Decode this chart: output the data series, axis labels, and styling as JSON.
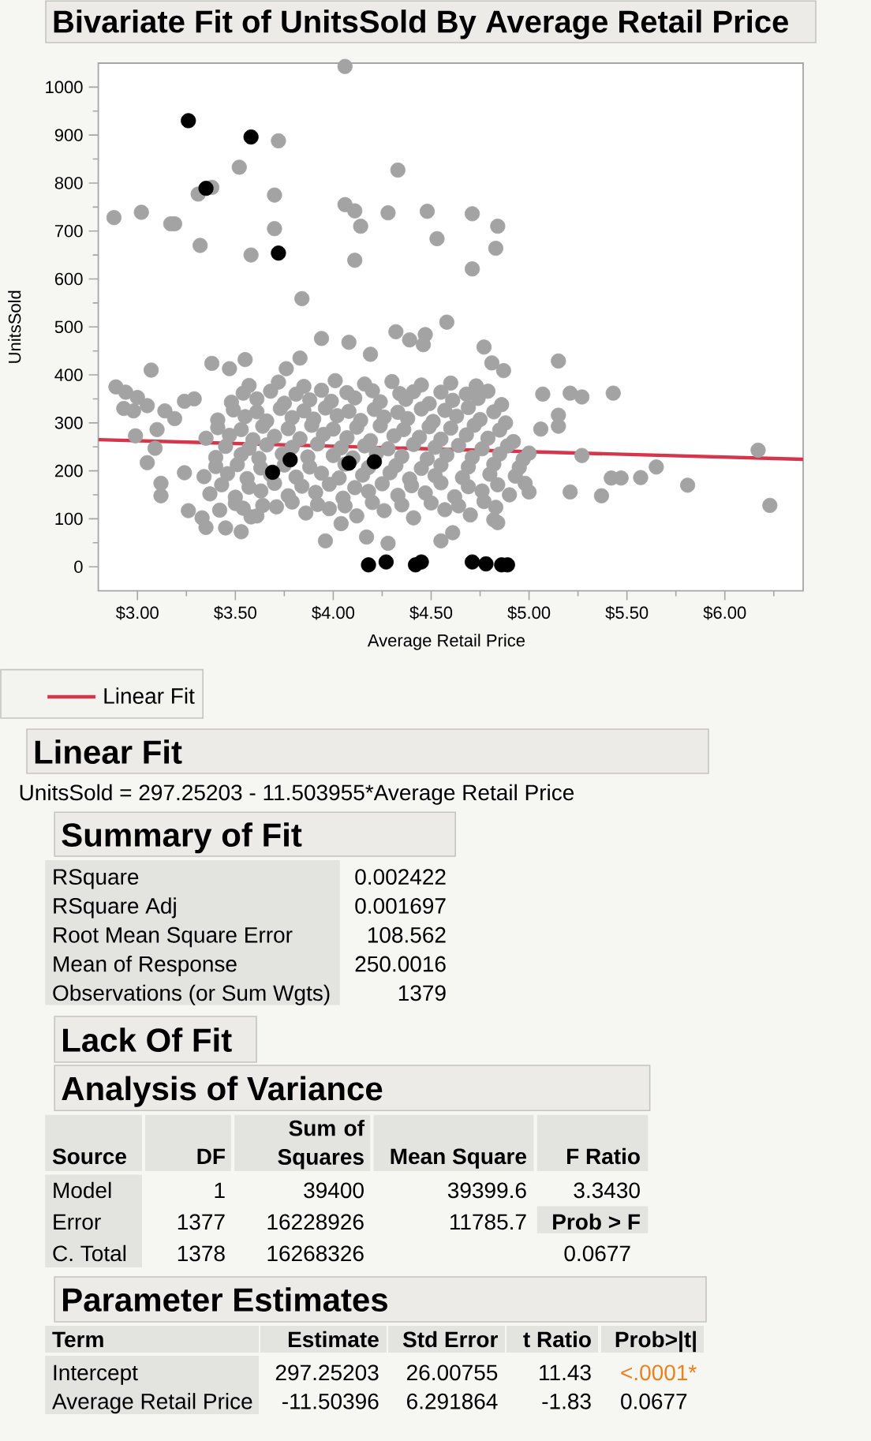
{
  "chart_data": [
    {
      "type": "scatter",
      "title": "Bivariate Fit of UnitsSold By Average Retail Price",
      "xlabel": "Average Retail Price",
      "ylabel": "UnitsSold",
      "xlim": [
        2.8,
        6.4
      ],
      "ylim": [
        -50,
        1050
      ],
      "xticks": [
        {
          "value": 3,
          "label": "$3.00"
        },
        {
          "value": 3.25,
          "label": null
        },
        {
          "value": 3.5,
          "label": "$3.50"
        },
        {
          "value": 3.75,
          "label": null
        },
        {
          "value": 4,
          "label": "$4.00"
        },
        {
          "value": 4.25,
          "label": null
        },
        {
          "value": 4.5,
          "label": "$4.50"
        },
        {
          "value": 4.75,
          "label": null
        },
        {
          "value": 5,
          "label": "$5.00"
        },
        {
          "value": 5.25,
          "label": null
        },
        {
          "value": 5.5,
          "label": "$5.50"
        },
        {
          "value": 5.75,
          "label": null
        },
        {
          "value": 6,
          "label": "$6.00"
        },
        {
          "value": 6.25,
          "label": null
        }
      ],
      "yticks": [
        0,
        {
          "value": 50,
          "label": null
        },
        100,
        {
          "value": 150,
          "label": null
        },
        200,
        {
          "value": 250,
          "label": null
        },
        300,
        {
          "value": 350,
          "label": null
        },
        400,
        {
          "value": 450,
          "label": null
        },
        500,
        {
          "value": 550,
          "label": null
        },
        600,
        {
          "value": 650,
          "label": null
        },
        700,
        {
          "value": 750,
          "label": null
        },
        800,
        {
          "value": 850,
          "label": null
        },
        900,
        {
          "value": 950,
          "label": null
        },
        1000
      ],
      "marker": "circle",
      "legend": "bottom left",
      "series": [
        {
          "color": "#a3a3a3",
          "x": [
            4.06,
            3.72,
            3.52,
            3.31,
            3.38,
            2.88,
            3.02,
            3.17,
            3.19,
            3.7,
            3.7,
            3.32,
            3.58,
            3.84,
            4.06,
            4.11,
            4.14,
            4.11,
            4.28,
            4.33,
            4.48,
            4.53,
            4.71,
            4.84,
            4.83,
            4.71,
            4.58,
            4.77,
            3.07,
            3.38,
            3.47,
            3.55,
            3.76,
            3.83,
            3.94,
            4.08,
            4.19,
            4.32,
            4.39,
            4.47,
            4.46,
            4.81,
            4.87,
            5.15,
            5.07,
            5.21,
            5.27,
            5.43,
            5.15,
            5.15,
            5.06,
            5.27,
            5.0,
            6.17,
            6.23,
            5.81,
            5.65,
            5.57,
            5.42,
            5.47,
            5.37,
            5.21,
            5.0,
            4.98,
            3.26,
            3.33,
            3.35,
            3.45,
            3.53,
            3.54,
            3.61,
            3.96,
            4.04,
            4.17,
            4.28,
            4.55,
            4.61,
            4.82,
            4.84,
            2.89,
            2.94,
            2.93,
            3.0,
            2.98,
            3.05,
            3.1,
            3.14,
            3.19,
            3.29,
            3.24,
            3.09,
            2.99,
            3.05,
            3.12,
            3.12,
            3.24,
            3.42,
            3.58,
            3.71,
            3.86,
            3.98,
            4.12,
            4.26,
            4.41,
            4.57,
            4.7,
            4.83,
            3.37,
            3.5,
            3.63,
            3.77,
            3.91,
            4.05,
            4.18,
            4.33,
            4.47,
            4.62,
            4.76,
            4.9,
            3.34,
            3.46,
            3.56,
            3.68,
            3.81,
            3.94,
            4.03,
            4.15,
            4.29,
            4.39,
            4.52,
            4.66,
            4.8,
            4.93,
            3.4,
            3.53,
            3.62,
            3.74,
            3.87,
            4.0,
            4.1,
            4.22,
            4.35,
            4.48,
            4.58,
            4.71,
            4.85,
            4.97,
            3.35,
            3.47,
            3.59,
            3.7,
            3.83,
            3.95,
            4.07,
            4.19,
            4.31,
            4.44,
            4.55,
            4.68,
            4.79,
            4.92,
            3.41,
            3.55,
            3.66,
            3.79,
            3.9,
            4.02,
            4.14,
            4.26,
            4.38,
            4.51,
            4.63,
            4.75,
            4.88,
            3.48,
            3.61,
            3.75,
            3.88,
            3.99,
            4.11,
            4.24,
            4.37,
            4.49,
            4.61,
            4.74,
            4.86,
            3.57,
            3.72,
            3.85,
            4.01,
            4.16,
            4.3,
            4.45,
            4.6,
            4.73,
            3.5,
            3.64,
            3.79,
            3.92,
            4.06,
            4.2,
            4.35,
            4.5,
            4.64,
            4.77,
            3.43,
            3.57,
            3.7,
            3.84,
            3.98,
            4.11,
            4.25,
            4.4,
            4.55,
            4.69,
            4.84,
            3.4,
            3.51,
            3.63,
            3.75,
            3.88,
            4.06,
            4.18,
            4.32,
            4.45,
            4.55,
            4.69,
            4.82,
            4.95,
            3.45,
            3.57,
            3.66,
            3.79,
            3.92,
            4.04,
            4.16,
            4.28,
            4.41,
            4.52,
            4.64,
            4.76,
            4.89,
            3.41,
            3.53,
            3.64,
            3.77,
            3.89,
            4.0,
            4.12,
            4.24,
            4.36,
            4.49,
            4.6,
            4.72,
            4.85,
            3.49,
            3.61,
            3.73,
            3.85,
            3.96,
            4.08,
            4.21,
            4.33,
            4.45,
            4.57,
            4.69,
            4.82,
            3.54,
            3.68,
            3.81,
            3.94,
            4.07,
            4.2,
            4.34,
            4.41,
            4.55,
            4.68,
            4.79
          ],
          "values": [
            1043,
            888,
            833,
            777,
            791,
            728,
            739,
            715,
            715,
            775,
            705,
            670,
            650,
            559,
            755,
            742,
            710,
            639,
            738,
            827,
            741,
            684,
            736,
            710,
            664,
            621,
            510,
            458,
            410,
            424,
            413,
            432,
            413,
            435,
            476,
            468,
            443,
            490,
            473,
            484,
            463,
            425,
            409,
            429,
            360,
            362,
            354,
            362,
            316,
            293,
            287,
            232,
            237,
            243,
            128,
            170,
            208,
            186,
            185,
            185,
            148,
            156,
            156,
            174,
            117,
            102,
            82,
            81,
            73,
            122,
            106,
            54,
            90,
            62,
            49,
            54,
            71,
            98,
            92,
            375,
            364,
            330,
            353,
            325,
            336,
            286,
            325,
            309,
            350,
            345,
            247,
            273,
            217,
            174,
            148,
            196,
            118,
            104,
            125,
            112,
            121,
            106,
            117,
            102,
            119,
            108,
            124,
            152,
            145,
            158,
            148,
            155,
            143,
            157,
            149,
            154,
            146,
            158,
            150,
            188,
            194,
            184,
            192,
            187,
            195,
            185,
            191,
            196,
            183,
            190,
            186,
            193,
            189,
            228,
            234,
            226,
            235,
            229,
            232,
            227,
            236,
            230,
            225,
            233,
            228,
            235,
            224,
            268,
            274,
            265,
            272,
            267,
            276,
            269,
            263,
            273,
            270,
            266,
            275,
            268,
            261,
            306,
            313,
            304,
            311,
            308,
            315,
            305,
            312,
            309,
            303,
            314,
            307,
            300,
            343,
            350,
            341,
            348,
            345,
            352,
            344,
            349,
            340,
            347,
            351,
            338,
            378,
            385,
            376,
            388,
            381,
            386,
            379,
            383,
            377,
            132,
            128,
            135,
            130,
            127,
            134,
            129,
            133,
            127,
            136,
            171,
            166,
            174,
            168,
            172,
            165,
            173,
            169,
            175,
            167,
            171,
            209,
            213,
            206,
            212,
            208,
            214,
            207,
            211,
            205,
            212,
            208,
            214,
            207,
            251,
            247,
            254,
            249,
            256,
            248,
            252,
            246,
            255,
            249,
            253,
            246,
            252,
            290,
            286,
            293,
            288,
            295,
            287,
            291,
            294,
            286,
            292,
            289,
            295,
            285,
            327,
            323,
            330,
            325,
            331,
            324,
            328,
            322,
            329,
            326,
            332,
            323,
            362,
            366,
            360,
            368,
            363,
            367,
            361,
            365,
            364,
            360,
            366
          ]
        },
        {
          "color": "#000000",
          "x": [
            3.26,
            3.58,
            3.35,
            3.72,
            3.69,
            3.78,
            4.08,
            4.21,
            4.18,
            4.27,
            4.42,
            4.45,
            4.71,
            4.78,
            4.86,
            4.89
          ],
          "values": [
            930,
            896,
            789,
            654,
            197,
            223,
            216,
            219,
            4,
            10,
            4,
            10,
            10,
            6,
            4,
            4
          ]
        },
        {
          "name": "Linear Fit",
          "type": "line",
          "marker": "none",
          "color": "#d6364c",
          "x": [
            2.8,
            6.4
          ],
          "values": [
            265,
            224
          ]
        }
      ]
    },
    {
      "type": "other",
      "title": "Linear Fit",
      "annotations": [
        "UnitsSold = 297.25203 - 11.503955*Average Retail Price"
      ]
    },
    {
      "type": "other",
      "title": "Summary of Fit",
      "annotations": [
        "RSquare",
        "0.002422",
        "RSquare Adj",
        "0.001697",
        "Root Mean Square Error",
        "108.562",
        "Mean of Response",
        "250.0016",
        "Observations (or Sum Wgts)",
        "1379"
      ]
    },
    {
      "type": "other",
      "title": "Lack Of Fit"
    },
    {
      "type": "other",
      "title": "Analysis of Variance",
      "annotations": [
        "Source",
        "DF",
        "Sum of Squares",
        "Mean Square",
        "F Ratio",
        "Model",
        "1",
        "39400",
        "39399.6",
        "3.3430",
        "Error",
        "1377",
        "16228926",
        "11785.7",
        "Prob > F",
        "C. Total",
        "1378",
        "16268326",
        "0.0677"
      ]
    },
    {
      "type": "other",
      "title": "Parameter Estimates",
      "annotations": [
        "Term",
        "Estimate",
        "Std Error",
        "t Ratio",
        "Prob>|t|",
        "Intercept",
        "297.25203",
        "26.00755",
        "11.43",
        "<.0001*",
        "Average Retail Price",
        "-11.50396",
        "6.291864",
        "-1.83",
        "0.0677"
      ]
    }
  ]
}
